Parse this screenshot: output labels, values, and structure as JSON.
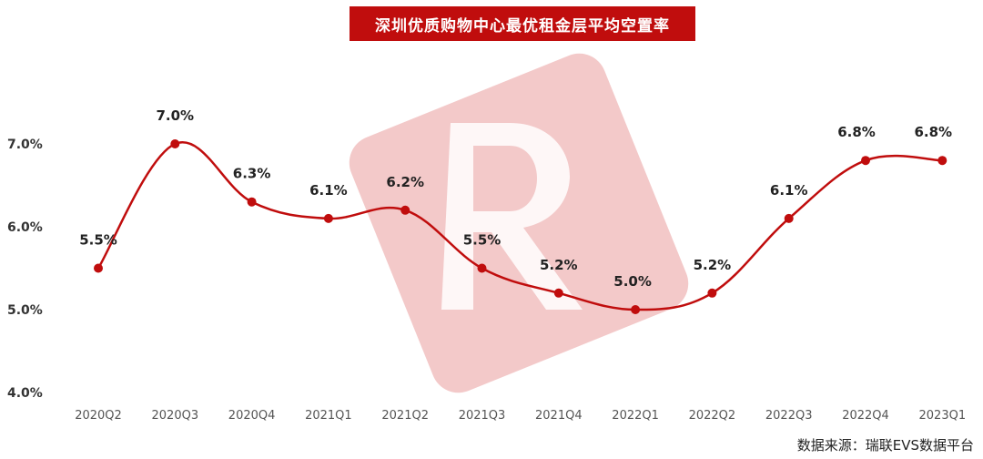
{
  "chart_data": {
    "type": "line",
    "title": "深圳优质购物中心最优租金层平均空置率",
    "source": "数据来源：瑞联EVS数据平台",
    "categories": [
      "2020Q2",
      "2020Q3",
      "2020Q4",
      "2021Q1",
      "2021Q2",
      "2021Q3",
      "2021Q4",
      "2022Q1",
      "2022Q2",
      "2022Q3",
      "2022Q4",
      "2023Q1"
    ],
    "values": [
      5.5,
      7.0,
      6.3,
      6.1,
      6.2,
      5.5,
      5.2,
      5.0,
      5.2,
      6.1,
      6.8,
      6.8
    ],
    "data_labels": [
      "5.5%",
      "7.0%",
      "6.3%",
      "6.1%",
      "6.2%",
      "5.5%",
      "5.2%",
      "5.0%",
      "5.2%",
      "6.1%",
      "6.8%",
      "6.8%"
    ],
    "yticks": [
      "7.0%",
      "6.0%",
      "5.0%",
      "4.0%"
    ],
    "ytick_values": [
      7.0,
      6.0,
      5.0,
      4.0
    ],
    "ylim": [
      4.0,
      7.0
    ],
    "xlabel": "",
    "ylabel": "",
    "grid": false,
    "colors": {
      "line": "#c00d0d",
      "title_bg": "#c00d0d",
      "watermark": "#f3c9c9"
    }
  }
}
